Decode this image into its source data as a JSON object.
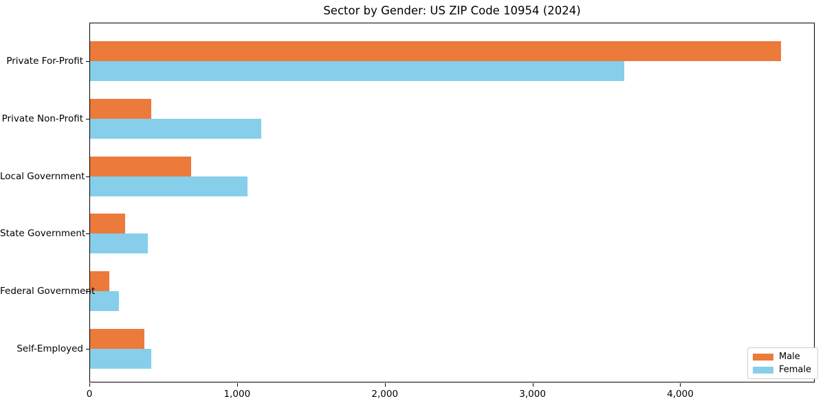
{
  "chart_data": {
    "type": "bar",
    "orientation": "horizontal",
    "title": "Sector by Gender: US ZIP Code 10954 (2024)",
    "categories": [
      "Private For-Profit",
      "Private Non-Profit",
      "Local Government",
      "State Government",
      "Federal Government",
      "Self-Employed"
    ],
    "series": [
      {
        "name": "Male",
        "color": "#EB7A3B",
        "values": [
          4680,
          420,
          690,
          240,
          135,
          370
        ]
      },
      {
        "name": "Female",
        "color": "#87CEEB",
        "values": [
          3620,
          1165,
          1070,
          395,
          200,
          420
        ]
      }
    ],
    "xlim": [
      0,
      4910
    ],
    "x_ticks": [
      0,
      1000,
      2000,
      3000,
      4000
    ],
    "x_tick_labels": [
      "0",
      "1,000",
      "2,000",
      "3,000",
      "4,000"
    ],
    "grid": false,
    "legend": {
      "position": "lower right"
    },
    "colors": {
      "axis": "#000000",
      "background": "#ffffff",
      "legend_border": "#cccccc"
    }
  }
}
